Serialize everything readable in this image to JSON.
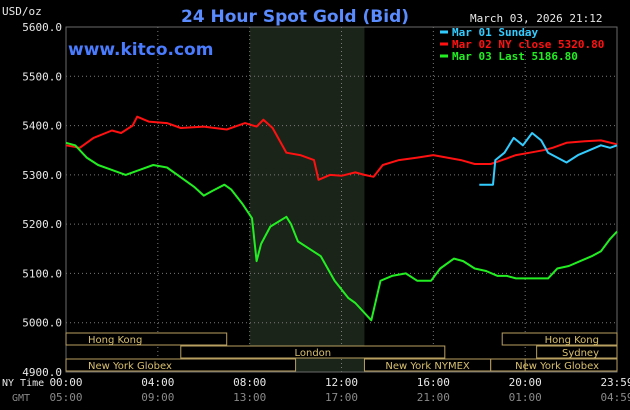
{
  "chart_data": {
    "type": "line",
    "title": "24 Hour Spot Gold (Bid)",
    "unit_label": "USD/oz",
    "watermark": "www.kitco.com",
    "timestamp": "March 03, 2026 21:12",
    "ylim": [
      4900,
      5600
    ],
    "y_ticks": [
      "5600.0",
      "5500.0",
      "5400.0",
      "5300.0",
      "5200.0",
      "5100.0",
      "5000.0",
      "4900.0"
    ],
    "x_hours": [
      0,
      4,
      8,
      12,
      16,
      20,
      24
    ],
    "x_ticks_ny": [
      "00:00",
      "04:00",
      "08:00",
      "12:00",
      "16:00",
      "20:00",
      "23:59"
    ],
    "x_ticks_gmt": [
      "05:00",
      "09:00",
      "13:00",
      "17:00",
      "21:00",
      "01:00",
      "04:59"
    ],
    "x_axis_labels": {
      "ny": "NY Time",
      "gmt": "GMT"
    },
    "highlight_range": [
      8.0,
      13.0
    ],
    "highlight_color": "#1a2418",
    "legend": [
      {
        "label": "Mar 01 Sunday",
        "color": "#33ccff"
      },
      {
        "label": "Mar 02 NY close 5320.80",
        "color": "#ff1111"
      },
      {
        "label": "Mar 03 Last 5186.80",
        "color": "#22ee22"
      }
    ],
    "series": [
      {
        "name": "Mar 02 NY close 5320.80",
        "color": "#ff1111",
        "points": [
          [
            0,
            5360
          ],
          [
            0.6,
            5355
          ],
          [
            1.2,
            5375
          ],
          [
            2.0,
            5390
          ],
          [
            2.4,
            5385
          ],
          [
            2.9,
            5400
          ],
          [
            3.1,
            5418
          ],
          [
            3.6,
            5408
          ],
          [
            4.4,
            5405
          ],
          [
            5.0,
            5395
          ],
          [
            6.0,
            5398
          ],
          [
            7.0,
            5392
          ],
          [
            7.8,
            5405
          ],
          [
            8.3,
            5398
          ],
          [
            8.6,
            5412
          ],
          [
            9.0,
            5395
          ],
          [
            9.3,
            5370
          ],
          [
            9.6,
            5345
          ],
          [
            10.2,
            5340
          ],
          [
            10.8,
            5330
          ],
          [
            11.0,
            5290
          ],
          [
            11.5,
            5300
          ],
          [
            12.0,
            5298
          ],
          [
            12.6,
            5305
          ],
          [
            13.0,
            5300
          ],
          [
            13.4,
            5296
          ],
          [
            13.8,
            5320
          ],
          [
            14.5,
            5330
          ],
          [
            15.3,
            5335
          ],
          [
            16.0,
            5340
          ],
          [
            16.6,
            5335
          ],
          [
            17.2,
            5330
          ],
          [
            17.8,
            5322
          ],
          [
            18.5,
            5322
          ],
          [
            19.0,
            5330
          ],
          [
            19.6,
            5340
          ],
          [
            20.2,
            5345
          ],
          [
            20.8,
            5350
          ],
          [
            21.2,
            5355
          ],
          [
            21.8,
            5365
          ],
          [
            22.6,
            5368
          ],
          [
            23.3,
            5370
          ],
          [
            24.0,
            5362
          ]
        ]
      },
      {
        "name": "Mar 01 Sunday",
        "color": "#33ccff",
        "points": [
          [
            18.0,
            5280
          ],
          [
            18.6,
            5280
          ],
          [
            18.7,
            5330
          ],
          [
            19.1,
            5345
          ],
          [
            19.5,
            5375
          ],
          [
            19.9,
            5360
          ],
          [
            20.3,
            5385
          ],
          [
            20.7,
            5370
          ],
          [
            21.0,
            5345
          ],
          [
            21.4,
            5335
          ],
          [
            21.8,
            5325
          ],
          [
            22.3,
            5340
          ],
          [
            22.8,
            5350
          ],
          [
            23.3,
            5360
          ],
          [
            23.7,
            5355
          ],
          [
            24.0,
            5360
          ]
        ]
      },
      {
        "name": "Mar 03 Last 5186.80",
        "color": "#22ee22",
        "points": [
          [
            0,
            5365
          ],
          [
            0.4,
            5360
          ],
          [
            0.9,
            5335
          ],
          [
            1.4,
            5320
          ],
          [
            2.0,
            5310
          ],
          [
            2.6,
            5300
          ],
          [
            3.2,
            5310
          ],
          [
            3.8,
            5320
          ],
          [
            4.4,
            5315
          ],
          [
            5.0,
            5295
          ],
          [
            5.6,
            5275
          ],
          [
            6.0,
            5258
          ],
          [
            6.4,
            5268
          ],
          [
            6.9,
            5280
          ],
          [
            7.2,
            5270
          ],
          [
            7.7,
            5240
          ],
          [
            8.1,
            5212
          ],
          [
            8.3,
            5125
          ],
          [
            8.5,
            5160
          ],
          [
            8.9,
            5195
          ],
          [
            9.6,
            5215
          ],
          [
            9.8,
            5200
          ],
          [
            10.1,
            5165
          ],
          [
            10.6,
            5150
          ],
          [
            11.1,
            5135
          ],
          [
            11.7,
            5085
          ],
          [
            12.3,
            5050
          ],
          [
            12.6,
            5040
          ],
          [
            13.3,
            5005
          ],
          [
            13.7,
            5085
          ],
          [
            14.2,
            5095
          ],
          [
            14.8,
            5100
          ],
          [
            15.3,
            5085
          ],
          [
            15.9,
            5085
          ],
          [
            16.3,
            5110
          ],
          [
            16.9,
            5130
          ],
          [
            17.3,
            5125
          ],
          [
            17.8,
            5110
          ],
          [
            18.3,
            5105
          ],
          [
            18.8,
            5095
          ],
          [
            19.2,
            5095
          ],
          [
            19.6,
            5090
          ],
          [
            20.0,
            5090
          ],
          [
            20.6,
            5090
          ],
          [
            21.0,
            5090
          ],
          [
            21.4,
            5110
          ],
          [
            21.9,
            5115
          ],
          [
            22.4,
            5125
          ],
          [
            22.9,
            5135
          ],
          [
            23.3,
            5145
          ],
          [
            23.7,
            5170
          ],
          [
            24.0,
            5185
          ]
        ]
      }
    ],
    "sessions": [
      {
        "label": "Hong Kong",
        "start": 0.0,
        "end": 7.0,
        "row": 0,
        "side": "left"
      },
      {
        "label": "London",
        "start": 5.0,
        "end": 16.5,
        "row": 1,
        "side": "mid"
      },
      {
        "label": "New York Globex",
        "start": 0.0,
        "end": 10.0,
        "row": 2,
        "side": "left"
      },
      {
        "label": "New York NYMEX",
        "start": 13.0,
        "end": 18.5,
        "row": 2,
        "side": "mid"
      },
      {
        "label": "NY Globex",
        "start": 18.5,
        "end": 24.0,
        "row": 2,
        "side": "mid"
      },
      {
        "label": "Hong Kong",
        "start": 19.0,
        "end": 24.0,
        "row": 0,
        "side": "right"
      },
      {
        "label": "Sydney",
        "start": 20.5,
        "end": 24.0,
        "row": 1,
        "side": "right"
      },
      {
        "label": "New York Globex",
        "start": 20.0,
        "end": 24.0,
        "row": 2,
        "side": "right"
      }
    ]
  }
}
